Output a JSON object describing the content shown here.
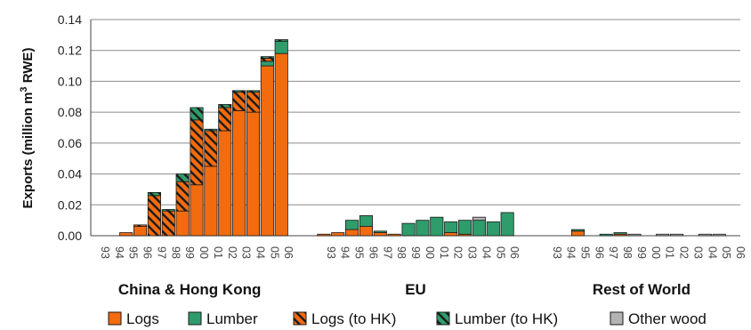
{
  "chart_data": {
    "type": "bar",
    "stacked": true,
    "title": "",
    "xlabel": "",
    "ylabel": "Exports (million m³ RWE)",
    "ylabel_parts": {
      "before": "Exports (million m",
      "sup": "3",
      "after": " RWE)"
    },
    "ylim": [
      0,
      0.14
    ],
    "yticks": [
      "0.00",
      "0.02",
      "0.04",
      "0.06",
      "0.08",
      "0.10",
      "0.12",
      "0.14"
    ],
    "grid": true,
    "legend_position": "bottom",
    "years": [
      "93",
      "94",
      "95",
      "96",
      "97",
      "98",
      "99",
      "00",
      "01",
      "02",
      "03",
      "04",
      "05",
      "06"
    ],
    "groups": [
      {
        "name": "China & Hong Kong",
        "logs": [
          0,
          0,
          0.002,
          0.006,
          0,
          0,
          0.016,
          0.033,
          0.045,
          0.068,
          0.081,
          0.08,
          0.11,
          0.118
        ],
        "lumber": [
          0,
          0,
          0,
          0,
          0,
          0,
          0,
          0,
          0,
          0,
          0,
          0,
          0.003,
          0.008
        ],
        "logs_to_hk": [
          0,
          0,
          0,
          0.001,
          0.026,
          0.016,
          0.019,
          0.042,
          0.023,
          0.015,
          0.012,
          0.013,
          0.002,
          0
        ],
        "lumber_to_hk": [
          0,
          0,
          0,
          0,
          0.002,
          0.001,
          0.005,
          0.008,
          0.001,
          0.002,
          0.001,
          0.001,
          0.001,
          0.001
        ],
        "other_wood": [
          0,
          0,
          0,
          0,
          0,
          0,
          0,
          0,
          0,
          0,
          0,
          0,
          0,
          0
        ]
      },
      {
        "name": "EU",
        "logs": [
          0.001,
          0.002,
          0.004,
          0.006,
          0.002,
          0.001,
          0,
          0,
          0,
          0.002,
          0.001,
          0,
          0,
          0
        ],
        "lumber": [
          0,
          0,
          0.006,
          0.007,
          0.001,
          0,
          0.008,
          0.01,
          0.012,
          0.007,
          0.009,
          0.01,
          0.009,
          0.015
        ],
        "logs_to_hk": [
          0,
          0,
          0,
          0,
          0,
          0,
          0,
          0,
          0,
          0,
          0,
          0,
          0,
          0
        ],
        "lumber_to_hk": [
          0,
          0,
          0,
          0,
          0,
          0,
          0,
          0,
          0,
          0,
          0,
          0,
          0,
          0
        ],
        "other_wood": [
          0,
          0,
          0,
          0,
          0,
          0,
          0,
          0,
          0,
          0,
          0,
          0.002,
          0,
          0
        ]
      },
      {
        "name": "Rest of World",
        "logs": [
          0,
          0,
          0.003,
          0,
          0,
          0.001,
          0,
          0,
          0,
          0,
          0,
          0,
          0,
          0
        ],
        "lumber": [
          0,
          0,
          0.001,
          0,
          0.001,
          0.001,
          0,
          0,
          0,
          0,
          0,
          0,
          0,
          0
        ],
        "logs_to_hk": [
          0,
          0,
          0,
          0,
          0,
          0,
          0,
          0,
          0,
          0,
          0,
          0,
          0,
          0
        ],
        "lumber_to_hk": [
          0,
          0,
          0,
          0,
          0,
          0,
          0,
          0,
          0,
          0,
          0,
          0,
          0,
          0
        ],
        "other_wood": [
          0,
          0,
          0,
          0,
          0,
          0,
          0.001,
          0,
          0.001,
          0.001,
          0,
          0.001,
          0.001,
          0
        ]
      }
    ],
    "series": [
      {
        "key": "logs",
        "name": "Logs",
        "color": "#f26b0f",
        "pattern": "solid"
      },
      {
        "key": "lumber",
        "name": "Lumber",
        "color": "#2f9c6b",
        "pattern": "solid"
      },
      {
        "key": "logs_to_hk",
        "name": "Logs (to HK)",
        "color": "#f26b0f",
        "pattern": "hatch"
      },
      {
        "key": "lumber_to_hk",
        "name": "Lumber (to HK)",
        "color": "#2f9c6b",
        "pattern": "hatch"
      },
      {
        "key": "other_wood",
        "name": "Other wood",
        "color": "#b3b3b3",
        "pattern": "solid"
      }
    ]
  }
}
